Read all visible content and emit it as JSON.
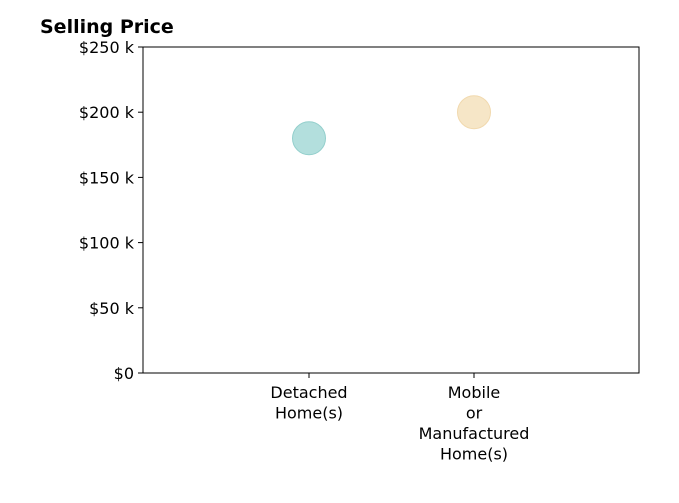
{
  "chart_data": {
    "type": "scatter",
    "title": "Selling Price",
    "categories": [
      "Detached\nHome(s)",
      "Mobile\nor\nManufactured\nHome(s)"
    ],
    "values": [
      180000,
      200000
    ],
    "point_colors": [
      "#b3dfdd",
      "#f6e6c7"
    ],
    "point_stroke_colors": [
      "#93cfcc",
      "#f1d9ae"
    ],
    "ylim": [
      0,
      250000
    ],
    "yticks": [
      0,
      50000,
      100000,
      150000,
      200000,
      250000
    ],
    "ytick_labels": [
      "$0",
      "$50 k",
      "$100 k",
      "$150 k",
      "$200 k",
      "$250 k"
    ],
    "xlabel": "",
    "ylabel": "",
    "grid": false,
    "legend": "none"
  }
}
